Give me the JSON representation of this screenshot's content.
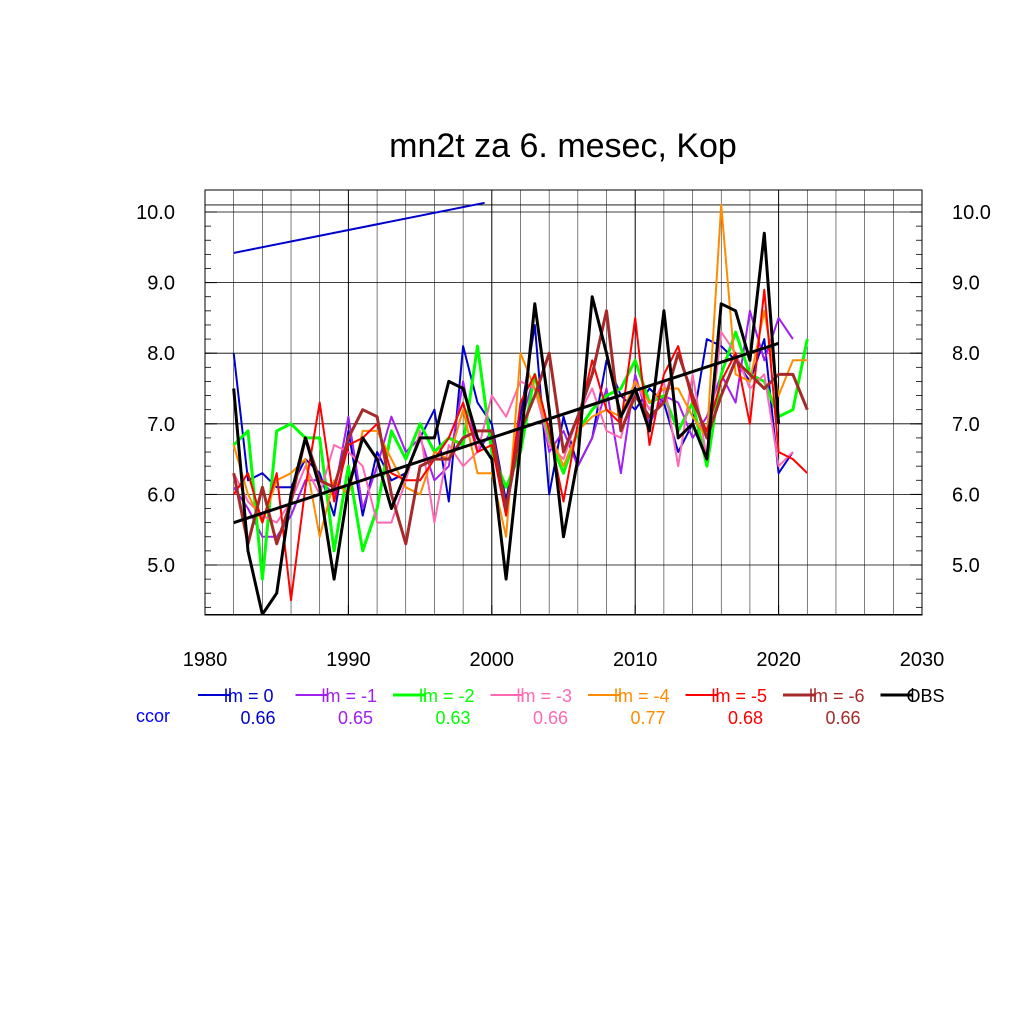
{
  "chart_data": {
    "type": "line",
    "title": "mn2t za 6. mesec, Kop",
    "xlabel": "",
    "ylabel": "",
    "xlim": [
      1980,
      2030
    ],
    "ylim": [
      4.2,
      10.2
    ],
    "xticks": [
      1980,
      1990,
      2000,
      2010,
      2020,
      2030
    ],
    "xtick_labels": [
      "1980",
      "1990",
      "2000",
      "2010",
      "2020",
      "2030"
    ],
    "yticks": [
      5.0,
      6.0,
      7.0,
      8.0,
      9.0,
      10.0
    ],
    "ytick_labels": [
      "5.0",
      "6.0",
      "7.0",
      "8.0",
      "9.0",
      "10.0"
    ],
    "grid": true,
    "legend_position": "bottom",
    "ccor_label": "ccor",
    "colors": {
      "ccor": "#0000ff"
    },
    "series": [
      {
        "name": "lm = 0",
        "color": "#0000cc",
        "width": 2,
        "ccor": "0.66",
        "start": 1982,
        "values": [
          8.0,
          6.2,
          6.3,
          6.1,
          6.1,
          6.5,
          6.3,
          5.7,
          6.9,
          5.7,
          6.6,
          6.2,
          6.3,
          6.8,
          7.2,
          5.9,
          8.1,
          7.3,
          7.0,
          5.9,
          7.1,
          8.4,
          6.0,
          7.1,
          6.4,
          6.8,
          7.9,
          7.4,
          7.2,
          7.5,
          7.3,
          6.6,
          7.0,
          8.2,
          8.1,
          7.9,
          7.6,
          8.2,
          6.3,
          6.6
        ]
      },
      {
        "name": "lm = -1",
        "color": "#a020f0",
        "width": 2,
        "ccor": "0.65",
        "start": 1982,
        "values": [
          6.1,
          5.8,
          5.4,
          5.4,
          5.7,
          6.2,
          6.2,
          6.0,
          7.1,
          5.8,
          6.4,
          7.1,
          6.6,
          6.8,
          6.2,
          6.4,
          7.6,
          6.6,
          6.9,
          5.8,
          7.0,
          7.7,
          6.6,
          6.9,
          6.4,
          6.8,
          7.5,
          6.3,
          7.7,
          7.0,
          7.4,
          7.3,
          6.8,
          7.1,
          7.7,
          7.3,
          8.6,
          7.9,
          8.5,
          8.2
        ]
      },
      {
        "name": "lm = -2",
        "color": "#00ff00",
        "width": 3,
        "ccor": "0.63",
        "start": 1982,
        "values": [
          6.7,
          6.9,
          4.8,
          6.9,
          7.0,
          6.8,
          6.8,
          5.2,
          6.4,
          5.2,
          5.8,
          6.9,
          6.5,
          7.0,
          6.6,
          6.8,
          6.7,
          8.1,
          6.6,
          6.1,
          6.6,
          7.7,
          6.8,
          6.3,
          6.9,
          7.2,
          7.4,
          7.5,
          7.9,
          7.3,
          7.4,
          6.9,
          7.3,
          6.4,
          7.7,
          8.3,
          7.7,
          7.6,
          7.1,
          7.2,
          8.2
        ]
      },
      {
        "name": "lm = -3",
        "color": "#ff69b4",
        "width": 2,
        "ccor": "0.66",
        "start": 1982,
        "values": [
          6.3,
          5.9,
          5.7,
          5.6,
          5.9,
          6.4,
          6.0,
          6.7,
          6.6,
          6.4,
          5.6,
          5.6,
          6.2,
          6.9,
          5.6,
          6.7,
          6.4,
          6.6,
          7.4,
          7.1,
          7.6,
          7.5,
          6.7,
          6.5,
          7.1,
          7.5,
          6.9,
          6.8,
          7.6,
          7.2,
          7.6,
          6.4,
          7.7,
          6.5,
          8.3,
          8.0,
          7.5,
          7.7,
          6.4,
          6.6
        ]
      },
      {
        "name": "lm = -4",
        "color": "#ff8c00",
        "width": 2,
        "ccor": "0.77",
        "start": 1982,
        "values": [
          6.7,
          6.0,
          5.6,
          6.2,
          6.3,
          6.5,
          5.4,
          6.2,
          6.0,
          6.9,
          6.9,
          6.5,
          6.1,
          6.0,
          6.6,
          6.5,
          7.2,
          6.3,
          6.3,
          5.4,
          8.0,
          7.5,
          6.9,
          6.4,
          6.9,
          7.1,
          7.2,
          7.1,
          7.6,
          7.3,
          7.5,
          7.5,
          7.1,
          6.8,
          10.1,
          7.7,
          7.6,
          8.6,
          7.4,
          7.9,
          7.9
        ]
      },
      {
        "name": "lm = -5",
        "color": "#ff0000",
        "width": 2,
        "ccor": "0.68",
        "start": 1982,
        "values": [
          6.0,
          6.3,
          5.6,
          6.3,
          4.5,
          6.1,
          7.3,
          5.9,
          6.7,
          6.8,
          7.0,
          6.3,
          6.2,
          6.2,
          6.5,
          6.8,
          7.3,
          6.6,
          6.7,
          5.7,
          7.3,
          7.7,
          6.9,
          5.9,
          7.0,
          7.9,
          7.2,
          7.0,
          8.5,
          6.7,
          7.7,
          8.1,
          7.3,
          6.9,
          7.6,
          8.0,
          7.0,
          8.9,
          6.6,
          6.5,
          6.3
        ]
      },
      {
        "name": "lm = -6",
        "color": "#a52a2a",
        "width": 3,
        "ccor": "0.66",
        "start": 1982,
        "values": [
          6.3,
          5.3,
          6.1,
          5.3,
          5.9,
          6.8,
          6.2,
          6.1,
          6.8,
          7.2,
          7.1,
          6.0,
          5.3,
          6.4,
          6.5,
          6.5,
          6.8,
          6.9,
          6.9,
          5.8,
          6.9,
          7.4,
          8.0,
          6.6,
          7.1,
          7.7,
          8.6,
          6.9,
          7.4,
          7.1,
          7.3,
          8.0,
          7.4,
          6.8,
          7.4,
          7.9,
          7.7,
          7.5,
          7.7,
          7.7,
          7.2
        ]
      },
      {
        "name": "OBS",
        "color": "#000000",
        "width": 3,
        "ccor": "",
        "start": 1982,
        "values": [
          7.5,
          5.2,
          4.3,
          4.6,
          6.0,
          6.8,
          6.1,
          4.8,
          6.1,
          6.8,
          6.5,
          5.8,
          6.3,
          6.8,
          6.8,
          7.6,
          7.5,
          6.8,
          6.5,
          4.8,
          6.7,
          8.7,
          7.2,
          5.4,
          6.5,
          8.8,
          8.0,
          7.1,
          7.5,
          6.9,
          8.6,
          6.8,
          7.0,
          6.5,
          8.7,
          8.6,
          7.9,
          9.7,
          7.0
        ]
      }
    ],
    "trend_lines": [
      {
        "color": "#000000",
        "width": 3,
        "x": [
          1982,
          2020
        ],
        "y": [
          5.6,
          8.14
        ]
      },
      {
        "color": "#0000cc",
        "width": 2,
        "x": [
          1982,
          1999.5
        ],
        "y": [
          9.42,
          10.13
        ]
      }
    ]
  }
}
